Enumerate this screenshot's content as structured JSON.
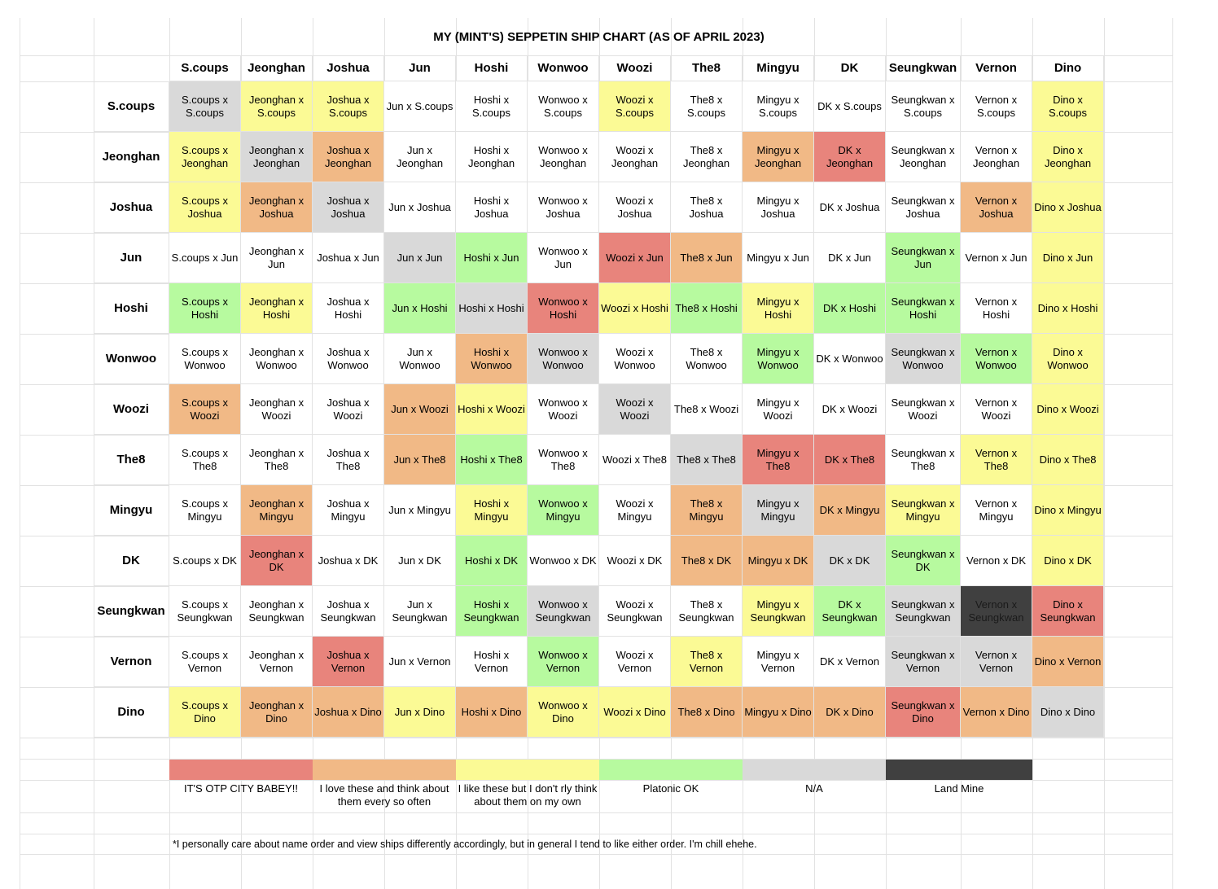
{
  "title": "MY (MINT'S) SEPPETIN SHIP CHART (AS OF APRIL 2023)",
  "members": [
    "S.coups",
    "Jeonghan",
    "Joshua",
    "Jun",
    "Hoshi",
    "Wonwoo",
    "Woozi",
    "The8",
    "Mingyu",
    "DK",
    "Seungkwan",
    "Vernon",
    "Dino"
  ],
  "colors": {
    "otp": "#e8847c",
    "love": "#f1b986",
    "like": "#fbfa95",
    "platonic": "#b7fa9f",
    "na": "#d9d9d9",
    "landmine": "#404040",
    "none": "#ffffff"
  },
  "grid": [
    {
      "row": "S.coups",
      "cells": [
        {
          "text": "S.coups x S.coups",
          "cat": "na"
        },
        {
          "text": "Jeonghan x S.coups",
          "cat": "like"
        },
        {
          "text": "Joshua x S.coups",
          "cat": "like"
        },
        {
          "text": "Jun x S.coups",
          "cat": "none"
        },
        {
          "text": "Hoshi x S.coups",
          "cat": "none"
        },
        {
          "text": "Wonwoo x S.coups",
          "cat": "none"
        },
        {
          "text": "Woozi x S.coups",
          "cat": "like"
        },
        {
          "text": "The8 x S.coups",
          "cat": "none"
        },
        {
          "text": "Mingyu x S.coups",
          "cat": "none"
        },
        {
          "text": "DK x S.coups",
          "cat": "none"
        },
        {
          "text": "Seungkwan x S.coups",
          "cat": "none"
        },
        {
          "text": "Vernon x S.coups",
          "cat": "none"
        },
        {
          "text": "Dino x S.coups",
          "cat": "like"
        }
      ]
    },
    {
      "row": "Jeonghan",
      "cells": [
        {
          "text": "S.coups x Jeonghan",
          "cat": "like"
        },
        {
          "text": "Jeonghan x Jeonghan",
          "cat": "na"
        },
        {
          "text": "Joshua x Jeonghan",
          "cat": "love"
        },
        {
          "text": "Jun x Jeonghan",
          "cat": "none"
        },
        {
          "text": "Hoshi x Jeonghan",
          "cat": "none"
        },
        {
          "text": "Wonwoo x Jeonghan",
          "cat": "none"
        },
        {
          "text": "Woozi x Jeonghan",
          "cat": "none"
        },
        {
          "text": "The8 x Jeonghan",
          "cat": "none"
        },
        {
          "text": "Mingyu x Jeonghan",
          "cat": "love"
        },
        {
          "text": "DK x Jeonghan",
          "cat": "otp"
        },
        {
          "text": "Seungkwan x Jeonghan",
          "cat": "none"
        },
        {
          "text": "Vernon x Jeonghan",
          "cat": "none"
        },
        {
          "text": "Dino x Jeonghan",
          "cat": "like"
        }
      ]
    },
    {
      "row": "Joshua",
      "cells": [
        {
          "text": "S.coups x Joshua",
          "cat": "like"
        },
        {
          "text": "Jeonghan x Joshua",
          "cat": "love"
        },
        {
          "text": "Joshua x Joshua",
          "cat": "na"
        },
        {
          "text": "Jun x Joshua",
          "cat": "none"
        },
        {
          "text": "Hoshi x Joshua",
          "cat": "none"
        },
        {
          "text": "Wonwoo x Joshua",
          "cat": "none"
        },
        {
          "text": "Woozi x Joshua",
          "cat": "none"
        },
        {
          "text": "The8 x Joshua",
          "cat": "none"
        },
        {
          "text": "Mingyu x Joshua",
          "cat": "none"
        },
        {
          "text": "DK x  Joshua",
          "cat": "none"
        },
        {
          "text": "Seungkwan x Joshua",
          "cat": "none"
        },
        {
          "text": "Vernon x Joshua",
          "cat": "love"
        },
        {
          "text": "Dino x Joshua",
          "cat": "like"
        }
      ]
    },
    {
      "row": "Jun",
      "cells": [
        {
          "text": "S.coups x Jun",
          "cat": "none"
        },
        {
          "text": "Jeonghan x Jun",
          "cat": "none"
        },
        {
          "text": "Joshua x Jun",
          "cat": "none"
        },
        {
          "text": "Jun x Jun",
          "cat": "na"
        },
        {
          "text": "Hoshi x Jun",
          "cat": "platonic"
        },
        {
          "text": "Wonwoo x Jun",
          "cat": "none"
        },
        {
          "text": "Woozi x Jun",
          "cat": "otp"
        },
        {
          "text": "The8 x  Jun",
          "cat": "love"
        },
        {
          "text": "Mingyu x Jun",
          "cat": "none"
        },
        {
          "text": "DK x  Jun",
          "cat": "none"
        },
        {
          "text": "Seungkwan x Jun",
          "cat": "platonic"
        },
        {
          "text": "Vernon x Jun",
          "cat": "none"
        },
        {
          "text": "Dino x Jun",
          "cat": "like"
        }
      ]
    },
    {
      "row": "Hoshi",
      "cells": [
        {
          "text": "S.coups x Hoshi",
          "cat": "platonic"
        },
        {
          "text": "Jeonghan x Hoshi",
          "cat": "like"
        },
        {
          "text": "Joshua x Hoshi",
          "cat": "none"
        },
        {
          "text": "Jun x Hoshi",
          "cat": "platonic"
        },
        {
          "text": "Hoshi x Hoshi",
          "cat": "na"
        },
        {
          "text": "Wonwoo x Hoshi",
          "cat": "otp"
        },
        {
          "text": "Woozi x Hoshi",
          "cat": "like"
        },
        {
          "text": "The8 x Hoshi",
          "cat": "platonic"
        },
        {
          "text": "Mingyu x Hoshi",
          "cat": "like"
        },
        {
          "text": "DK x  Hoshi",
          "cat": "platonic"
        },
        {
          "text": "Seungkwan x Hoshi",
          "cat": "platonic"
        },
        {
          "text": "Vernon x Hoshi",
          "cat": "none"
        },
        {
          "text": "Dino x Hoshi",
          "cat": "like"
        }
      ]
    },
    {
      "row": "Wonwoo",
      "cells": [
        {
          "text": "S.coups x Wonwoo",
          "cat": "none"
        },
        {
          "text": "Jeonghan x Wonwoo",
          "cat": "none"
        },
        {
          "text": "Joshua x Wonwoo",
          "cat": "none"
        },
        {
          "text": "Jun x Wonwoo",
          "cat": "none"
        },
        {
          "text": "Hoshi x Wonwoo",
          "cat": "love"
        },
        {
          "text": "Wonwoo x Wonwoo",
          "cat": "na"
        },
        {
          "text": "Woozi x Wonwoo",
          "cat": "none"
        },
        {
          "text": "The8 x Wonwoo",
          "cat": "none"
        },
        {
          "text": "Mingyu x Wonwoo",
          "cat": "platonic"
        },
        {
          "text": "DK x Wonwoo",
          "cat": "none"
        },
        {
          "text": "Seungkwan x Wonwoo",
          "cat": "na"
        },
        {
          "text": "Vernon x Wonwoo",
          "cat": "platonic"
        },
        {
          "text": "Dino x Wonwoo",
          "cat": "like"
        }
      ]
    },
    {
      "row": "Woozi",
      "cells": [
        {
          "text": "S.coups x Woozi",
          "cat": "love"
        },
        {
          "text": "Jeonghan x Woozi",
          "cat": "none"
        },
        {
          "text": "Joshua x Woozi",
          "cat": "none"
        },
        {
          "text": "Jun x Woozi",
          "cat": "love"
        },
        {
          "text": "Hoshi x Woozi",
          "cat": "like"
        },
        {
          "text": "Wonwoo x Woozi",
          "cat": "none"
        },
        {
          "text": "Woozi x Woozi",
          "cat": "na"
        },
        {
          "text": "The8 x Woozi",
          "cat": "none"
        },
        {
          "text": "Mingyu x Woozi",
          "cat": "none"
        },
        {
          "text": "DK x Woozi",
          "cat": "none"
        },
        {
          "text": "Seungkwan x Woozi",
          "cat": "none"
        },
        {
          "text": "Vernon x Woozi",
          "cat": "none"
        },
        {
          "text": "Dino x Woozi",
          "cat": "like"
        }
      ]
    },
    {
      "row": "The8",
      "cells": [
        {
          "text": "S.coups x The8",
          "cat": "none"
        },
        {
          "text": "Jeonghan x The8",
          "cat": "none"
        },
        {
          "text": "Joshua x The8",
          "cat": "none"
        },
        {
          "text": "Jun x The8",
          "cat": "love"
        },
        {
          "text": "Hoshi x The8",
          "cat": "platonic"
        },
        {
          "text": "Wonwoo x The8",
          "cat": "none"
        },
        {
          "text": "Woozi x The8",
          "cat": "none"
        },
        {
          "text": "The8 x The8",
          "cat": "na"
        },
        {
          "text": "Mingyu x The8",
          "cat": "otp"
        },
        {
          "text": "DK x The8",
          "cat": "otp"
        },
        {
          "text": "Seungkwan x The8",
          "cat": "none"
        },
        {
          "text": "Vernon x The8",
          "cat": "like"
        },
        {
          "text": "Dino x The8",
          "cat": "like"
        }
      ]
    },
    {
      "row": "Mingyu",
      "cells": [
        {
          "text": "S.coups x Mingyu",
          "cat": "none"
        },
        {
          "text": "Jeonghan x Mingyu",
          "cat": "love"
        },
        {
          "text": "Joshua x Mingyu",
          "cat": "none"
        },
        {
          "text": "Jun x Mingyu",
          "cat": "none"
        },
        {
          "text": "Hoshi x Mingyu",
          "cat": "like"
        },
        {
          "text": "Wonwoo x Mingyu",
          "cat": "platonic"
        },
        {
          "text": "Woozi x Mingyu",
          "cat": "none"
        },
        {
          "text": "The8 x Mingyu",
          "cat": "love"
        },
        {
          "text": "Mingyu x Mingyu",
          "cat": "na"
        },
        {
          "text": "DK x Mingyu",
          "cat": "love"
        },
        {
          "text": "Seungkwan x Mingyu",
          "cat": "like"
        },
        {
          "text": "Vernon x Mingyu",
          "cat": "none"
        },
        {
          "text": "Dino x Mingyu",
          "cat": "like"
        }
      ]
    },
    {
      "row": "DK",
      "cells": [
        {
          "text": "S.coups x DK",
          "cat": "none"
        },
        {
          "text": "Jeonghan x DK",
          "cat": "otp"
        },
        {
          "text": "Joshua x DK",
          "cat": "none"
        },
        {
          "text": "Jun x DK",
          "cat": "none"
        },
        {
          "text": "Hoshi x DK",
          "cat": "platonic"
        },
        {
          "text": "Wonwoo x DK",
          "cat": "none"
        },
        {
          "text": "Woozi x DK",
          "cat": "none"
        },
        {
          "text": "The8 x DK",
          "cat": "love"
        },
        {
          "text": "Mingyu x DK",
          "cat": "love"
        },
        {
          "text": "DK x DK",
          "cat": "na"
        },
        {
          "text": "Seungkwan x DK",
          "cat": "platonic"
        },
        {
          "text": "Vernon x DK",
          "cat": "none"
        },
        {
          "text": "Dino x DK",
          "cat": "like"
        }
      ]
    },
    {
      "row": "Seungkwan",
      "cells": [
        {
          "text": "S.coups x Seungkwan",
          "cat": "none"
        },
        {
          "text": "Jeonghan x Seungkwan",
          "cat": "none"
        },
        {
          "text": "Joshua x Seungkwan",
          "cat": "none"
        },
        {
          "text": "Jun x Seungkwan",
          "cat": "none"
        },
        {
          "text": "Hoshi x Seungkwan",
          "cat": "platonic"
        },
        {
          "text": "Wonwoo x Seungkwan",
          "cat": "na"
        },
        {
          "text": "Woozi x Seungkwan",
          "cat": "none"
        },
        {
          "text": "The8 x Seungkwan",
          "cat": "none"
        },
        {
          "text": "Mingyu x Seungkwan",
          "cat": "like"
        },
        {
          "text": "DK x Seungkwan",
          "cat": "platonic"
        },
        {
          "text": "Seungkwan x Seungkwan",
          "cat": "na"
        },
        {
          "text": "Vernon x Seungkwan",
          "cat": "landmine"
        },
        {
          "text": "Dino x Seungkwan",
          "cat": "otp"
        }
      ]
    },
    {
      "row": "Vernon",
      "cells": [
        {
          "text": "S.coups x Vernon",
          "cat": "none"
        },
        {
          "text": "Jeonghan x Vernon",
          "cat": "none"
        },
        {
          "text": "Joshua x Vernon",
          "cat": "otp"
        },
        {
          "text": "Jun x Vernon",
          "cat": "none"
        },
        {
          "text": "Hoshi x Vernon",
          "cat": "none"
        },
        {
          "text": "Wonwoo x Vernon",
          "cat": "platonic"
        },
        {
          "text": "Woozi x Vernon",
          "cat": "none"
        },
        {
          "text": "The8 x Vernon",
          "cat": "like"
        },
        {
          "text": "Mingyu x Vernon",
          "cat": "none"
        },
        {
          "text": "DK x Vernon",
          "cat": "none"
        },
        {
          "text": "Seungkwan x Vernon",
          "cat": "na"
        },
        {
          "text": "Vernon x Vernon",
          "cat": "na"
        },
        {
          "text": "Dino x Vernon",
          "cat": "love"
        }
      ]
    },
    {
      "row": "Dino",
      "cells": [
        {
          "text": "S.coups x Dino",
          "cat": "like"
        },
        {
          "text": "Jeonghan x Dino",
          "cat": "love"
        },
        {
          "text": "Joshua x Dino",
          "cat": "love"
        },
        {
          "text": "Jun x Dino",
          "cat": "like"
        },
        {
          "text": "Hoshi x Dino",
          "cat": "love"
        },
        {
          "text": "Wonwoo x Dino",
          "cat": "like"
        },
        {
          "text": "Woozi x Dino",
          "cat": "like"
        },
        {
          "text": "The8 x Dino",
          "cat": "love"
        },
        {
          "text": "Mingyu x Dino",
          "cat": "love"
        },
        {
          "text": "DK x Dino",
          "cat": "love"
        },
        {
          "text": "Seungkwan x Dino",
          "cat": "otp"
        },
        {
          "text": "Vernon x Dino",
          "cat": "love"
        },
        {
          "text": "Dino x Dino",
          "cat": "na"
        }
      ]
    }
  ],
  "legend": [
    {
      "cat": "otp",
      "label": "IT'S OTP CITY BABEY!!"
    },
    {
      "cat": "love",
      "label": "I love these and think about them every so often"
    },
    {
      "cat": "like",
      "label": "I like these but I don't rly think about them on my own"
    },
    {
      "cat": "platonic",
      "label": "Platonic OK"
    },
    {
      "cat": "na",
      "label": "N/A"
    },
    {
      "cat": "landmine",
      "label": "Land Mine"
    }
  ],
  "footnote": "*I personally care about name order and view ships differently accordingly, but in general I tend to like either order. I'm chill ehehe."
}
